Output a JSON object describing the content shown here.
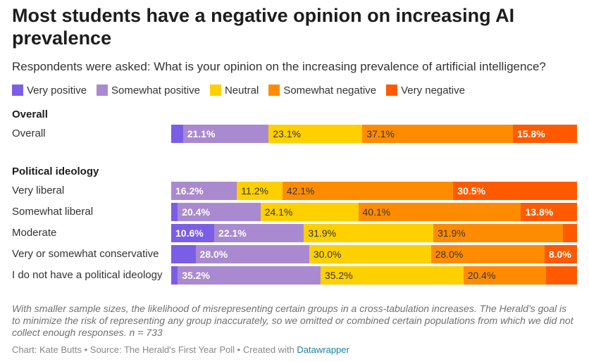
{
  "title": "Most students have a negative opinion on increasing AI prevalence",
  "subtitle": "Respondents were asked: What is your opinion on the increasing prevalence of artificial intelligence?",
  "colors": {
    "very_positive": "#7b5ee6",
    "somewhat_positive": "#a98ad0",
    "neutral": "#ffd000",
    "somewhat_negative": "#ff8c00",
    "very_negative": "#ff5a00"
  },
  "chart_data": {
    "type": "bar",
    "orientation": "horizontal",
    "stacked": true,
    "xlim": [
      0,
      100
    ],
    "legend_position": "top",
    "series_names": [
      "Very positive",
      "Somewhat positive",
      "Neutral",
      "Somewhat negative",
      "Very negative"
    ],
    "groups": [
      {
        "title": "Overall",
        "rows": [
          {
            "label": "Overall",
            "values": [
              2.9,
              21.1,
              23.1,
              37.1,
              15.8
            ],
            "labels": [
              "",
              "21.1%",
              "23.1%",
              "37.1%",
              "15.8%"
            ]
          }
        ]
      },
      {
        "title": "Political ideology",
        "rows": [
          {
            "label": "Very liberal",
            "values": [
              0,
              16.2,
              11.2,
              42.1,
              30.5
            ],
            "labels": [
              "",
              "16.2%",
              "11.2%",
              "42.1%",
              "30.5%"
            ]
          },
          {
            "label": "Somewhat liberal",
            "values": [
              1.6,
              20.4,
              24.1,
              40.1,
              13.8
            ],
            "labels": [
              "",
              "20.4%",
              "24.1%",
              "40.1%",
              "13.8%"
            ]
          },
          {
            "label": "Moderate",
            "values": [
              10.6,
              22.1,
              31.9,
              31.9,
              3.5
            ],
            "labels": [
              "10.6%",
              "22.1%",
              "31.9%",
              "31.9%",
              ""
            ]
          },
          {
            "label": "Very or somewhat conservative",
            "values": [
              6.0,
              28.0,
              30.0,
              28.0,
              8.0
            ],
            "labels": [
              "",
              "28.0%",
              "30.0%",
              "28.0%",
              "8.0%"
            ]
          },
          {
            "label": "I do not have a political ideology",
            "values": [
              1.6,
              35.2,
              35.2,
              20.4,
              7.6
            ],
            "labels": [
              "",
              "35.2%",
              "35.2%",
              "20.4%",
              ""
            ]
          }
        ]
      }
    ]
  },
  "note": "With smaller sample sizes, the likelihood of misrepresenting certain groups in a cross-tabulation increases. The Herald’s goal is to minimize the risk of representing any group inaccurately, so we omitted or combined certain populations from which we did not collect enough responses. n = 733",
  "footer": {
    "credit": "Chart: Kate Butts • Source: The Herald's First Year Poll • Created with ",
    "tool": "Datawrapper"
  }
}
